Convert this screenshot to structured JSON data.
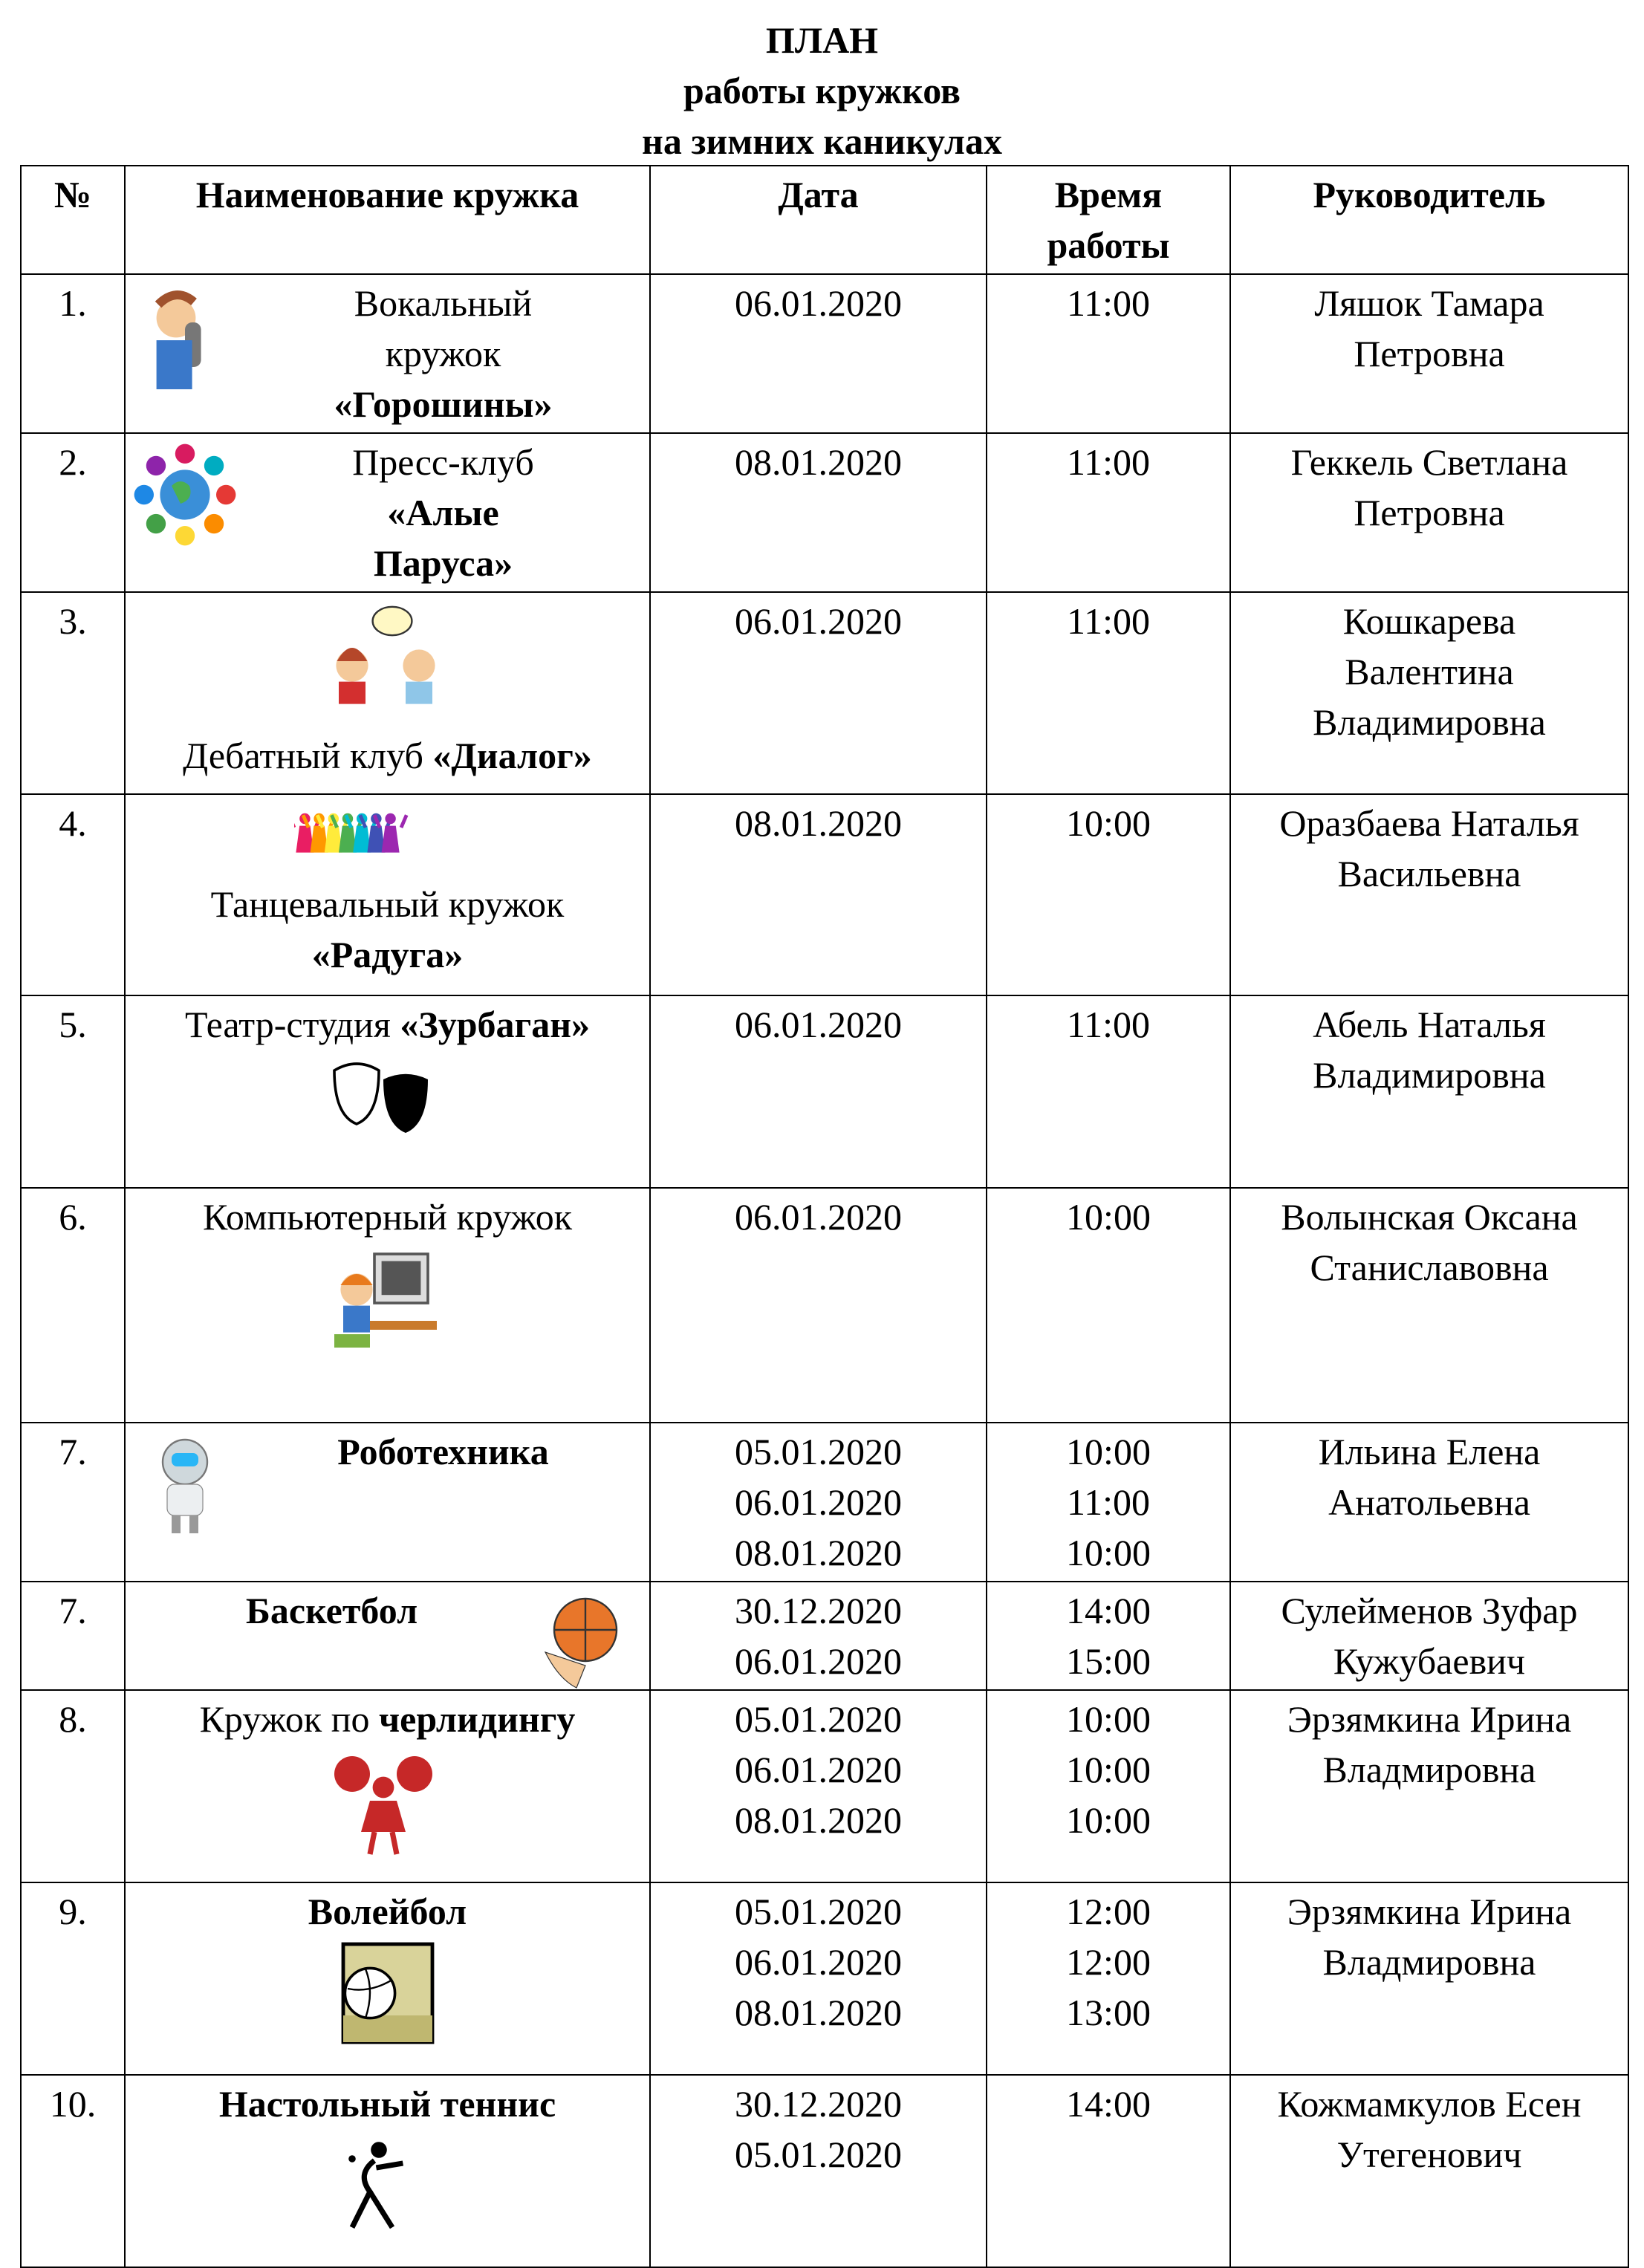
{
  "title": {
    "line1": "ПЛАН",
    "line2": "работы кружков",
    "line3": "на зимних каникулах"
  },
  "headers": {
    "num": "№",
    "name": "Наименование кружка",
    "date": "Дата",
    "time_line1": "Время",
    "time_line2": "работы",
    "leader": "Руководитель"
  },
  "rows": [
    {
      "num": "1.",
      "icon": "singer-icon",
      "name": [
        [
          {
            "t": "Вокальный"
          }
        ],
        [
          {
            "t": "кружок"
          }
        ],
        [
          {
            "t": "«Горошины»",
            "b": true
          }
        ]
      ],
      "dates": [
        "06.01.2020"
      ],
      "times": [
        "11:00"
      ],
      "leader": [
        "Ляшок Тамара",
        "Петровна"
      ]
    },
    {
      "num": "2.",
      "icon": "globe-hands-icon",
      "name": [
        [
          {
            "t": "Пресс-клуб"
          }
        ],
        [
          {
            "t": "«Алые",
            "b": true
          }
        ],
        [
          {
            "t": "Паруса»",
            "b": true
          }
        ]
      ],
      "dates": [
        "08.01.2020"
      ],
      "times": [
        "11:00"
      ],
      "leader": [
        "Геккель Светлана",
        "Петровна"
      ]
    },
    {
      "num": "3.",
      "icon": "debate-people-icon",
      "name": [
        [
          {
            "t": "Дебатный клуб "
          },
          {
            "t": "«Диалог»",
            "b": true
          }
        ]
      ],
      "dates": [
        "06.01.2020"
      ],
      "times": [
        "11:00"
      ],
      "leader": [
        "Кошкарева",
        "Валентина",
        "Владимировна"
      ]
    },
    {
      "num": "4.",
      "icon": "dancers-icon",
      "name": [
        [
          {
            "t": "Танцевальный кружок"
          }
        ],
        [
          {
            "t": "«Радуга»",
            "b": true
          }
        ]
      ],
      "dates": [
        "08.01.2020"
      ],
      "times": [
        "10:00"
      ],
      "leader": [
        "Оразбаева Наталья",
        "Васильевна"
      ]
    },
    {
      "num": "5.",
      "icon": "theatre-masks-icon",
      "name": [
        [
          {
            "t": "Театр-студия "
          },
          {
            "t": "«Зурбаган»",
            "b": true
          }
        ]
      ],
      "dates": [
        "06.01.2020"
      ],
      "times": [
        "11:00"
      ],
      "leader": [
        "Абель Наталья",
        "Владимировна"
      ]
    },
    {
      "num": "6.",
      "icon": "computer-kid-icon",
      "name": [
        [
          {
            "t": "Компьютерный кружок"
          }
        ]
      ],
      "dates": [
        "06.01.2020"
      ],
      "times": [
        "10:00"
      ],
      "leader": [
        "Волынская Оксана",
        "Станиславовна"
      ]
    },
    {
      "num": "7.",
      "icon": "robot-icon",
      "name": [
        [
          {
            "t": "Роботехника",
            "b": true
          }
        ]
      ],
      "dates": [
        "05.01.2020",
        "06.01.2020",
        "08.01.2020"
      ],
      "times": [
        "10:00",
        "11:00",
        "10:00"
      ],
      "leader": [
        "Ильина Елена",
        "Анатольевна"
      ]
    },
    {
      "num": "7.",
      "icon": "basketball-icon",
      "name": [
        [
          {
            "t": "Баскетбол",
            "b": true
          }
        ]
      ],
      "dates": [
        "30.12.2020",
        "06.01.2020"
      ],
      "times": [
        "14:00",
        "15:00"
      ],
      "leader": [
        "Сулейменов Зуфар",
        "Кужубаевич"
      ]
    },
    {
      "num": "8.",
      "icon": "cheerleader-icon",
      "name": [
        [
          {
            "t": "Кружок по "
          },
          {
            "t": "черлидингу",
            "b": true
          }
        ]
      ],
      "dates": [
        "05.01.2020",
        "06.01.2020",
        "08.01.2020"
      ],
      "times": [
        "10:00",
        "10:00",
        "10:00"
      ],
      "leader": [
        "Эрзямкина Ирина",
        "Владмировна"
      ]
    },
    {
      "num": "9.",
      "icon": "volleyball-icon",
      "name": [
        [
          {
            "t": "Волейбол",
            "b": true
          }
        ]
      ],
      "dates": [
        "05.01.2020",
        "06.01.2020",
        "08.01.2020"
      ],
      "times": [
        "12:00",
        "12:00",
        "13:00"
      ],
      "leader": [
        "Эрзямкина Ирина",
        "Владмировна"
      ]
    },
    {
      "num": "10.",
      "icon": "table-tennis-icon",
      "name": [
        [
          {
            "t": "Настольный теннис",
            "b": true
          }
        ]
      ],
      "dates": [
        "30.12.2020",
        "05.01.2020"
      ],
      "times": [
        "14:00"
      ],
      "leader": [
        "Кожмамкулов Есен",
        "Утегенович"
      ]
    }
  ]
}
